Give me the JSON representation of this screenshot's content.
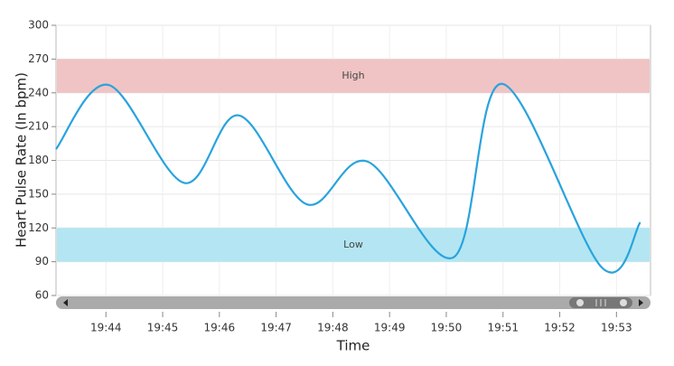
{
  "chart_data": {
    "type": "line",
    "x_label": "Time",
    "y_label": "Heart Pulse Rate (In bpm)",
    "x": [
      43.12,
      44.05,
      45.38,
      46.34,
      47.54,
      48.61,
      50.13,
      50.98,
      52.74,
      53.42
    ],
    "series": [
      {
        "name": "Heart Pulse Rate",
        "color": "#29a3dd",
        "values": [
          190,
          247,
          160,
          220,
          141,
          179,
          94,
          248,
          85,
          125
        ]
      }
    ],
    "xlim": [
      43.12,
      53.6
    ],
    "xticks": [
      {
        "value": 44,
        "label": "19:44"
      },
      {
        "value": 45,
        "label": "19:45"
      },
      {
        "value": 46,
        "label": "19:46"
      },
      {
        "value": 47,
        "label": "19:47"
      },
      {
        "value": 48,
        "label": "19:48"
      },
      {
        "value": 49,
        "label": "19:49"
      },
      {
        "value": 50,
        "label": "19:50"
      },
      {
        "value": 51,
        "label": "19:51"
      },
      {
        "value": 52,
        "label": "19:52"
      },
      {
        "value": 53,
        "label": "19:53"
      }
    ],
    "ylim": [
      60,
      300
    ],
    "yticks": [
      60,
      90,
      120,
      150,
      180,
      210,
      240,
      270,
      300
    ],
    "bands": [
      {
        "label": "High",
        "from": 240,
        "to": 270,
        "color": "#f0c4c4"
      },
      {
        "label": "Low",
        "from": 90,
        "to": 120,
        "color": "#b3e6f2"
      }
    ],
    "grid": true
  }
}
